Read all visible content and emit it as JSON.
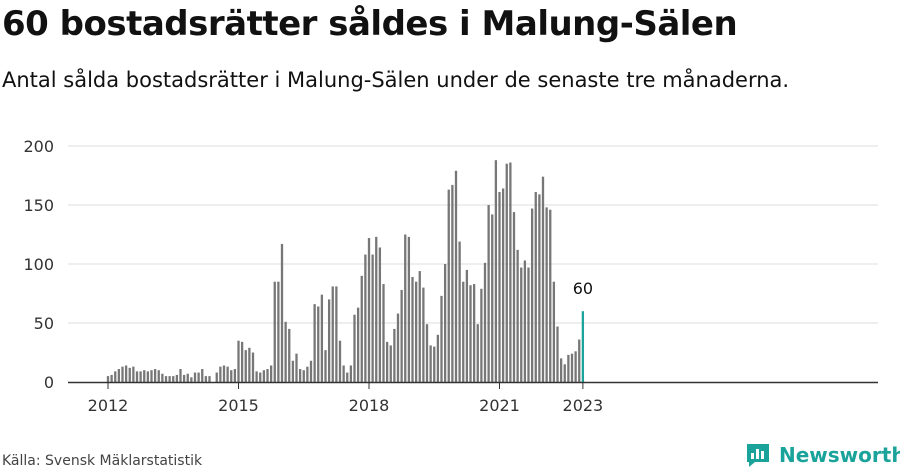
{
  "title": "60 bostadsrätter såldes i Malung-Sälen",
  "subtitle": "Antal sålda bostadsrätter i Malung-Sälen under de senaste tre månaderna.",
  "source": "Källa: Svensk Mäklarstatistik",
  "brand": {
    "name": "Newsworthy",
    "icon": "newsworthy-logo-icon",
    "color": "#1aa39a"
  },
  "colors": {
    "bar": "#777777",
    "highlight": "#1aa39a",
    "grid": "#dddddd",
    "axis": "#333333"
  },
  "chart_data": {
    "type": "bar",
    "title": "",
    "xlabel": "",
    "ylabel": "",
    "ylim": [
      0,
      200
    ],
    "yticks": [
      0,
      50,
      100,
      150,
      200
    ],
    "x_tick_labels": [
      "2012",
      "2015",
      "2018",
      "2021",
      "2023"
    ],
    "grid": true,
    "start": "2012-01",
    "frequency": "monthly",
    "values": [
      5,
      6,
      9,
      11,
      13,
      14,
      12,
      13,
      9,
      9,
      10,
      9,
      10,
      11,
      10,
      7,
      5,
      5,
      5,
      6,
      11,
      6,
      7,
      4,
      8,
      8,
      11,
      5,
      5,
      0,
      8,
      13,
      14,
      13,
      10,
      11,
      35,
      34,
      27,
      29,
      25,
      9,
      8,
      10,
      11,
      14,
      85,
      85,
      117,
      51,
      45,
      18,
      24,
      11,
      10,
      13,
      18,
      66,
      64,
      74,
      27,
      70,
      81,
      81,
      35,
      14,
      8,
      14,
      57,
      63,
      90,
      108,
      122,
      108,
      123,
      114,
      83,
      34,
      31,
      45,
      58,
      78,
      125,
      123,
      89,
      85,
      94,
      80,
      49,
      31,
      30,
      40,
      73,
      100,
      163,
      167,
      179,
      119,
      85,
      95,
      82,
      83,
      49,
      79,
      101,
      150,
      142,
      188,
      161,
      164,
      185,
      186,
      144,
      112,
      97,
      103,
      97,
      147,
      161,
      159,
      174,
      148,
      146,
      85,
      47,
      20,
      15,
      23,
      24,
      26,
      36,
      60
    ],
    "highlight_last": true,
    "annotation": {
      "text": "60",
      "target": "last"
    }
  }
}
